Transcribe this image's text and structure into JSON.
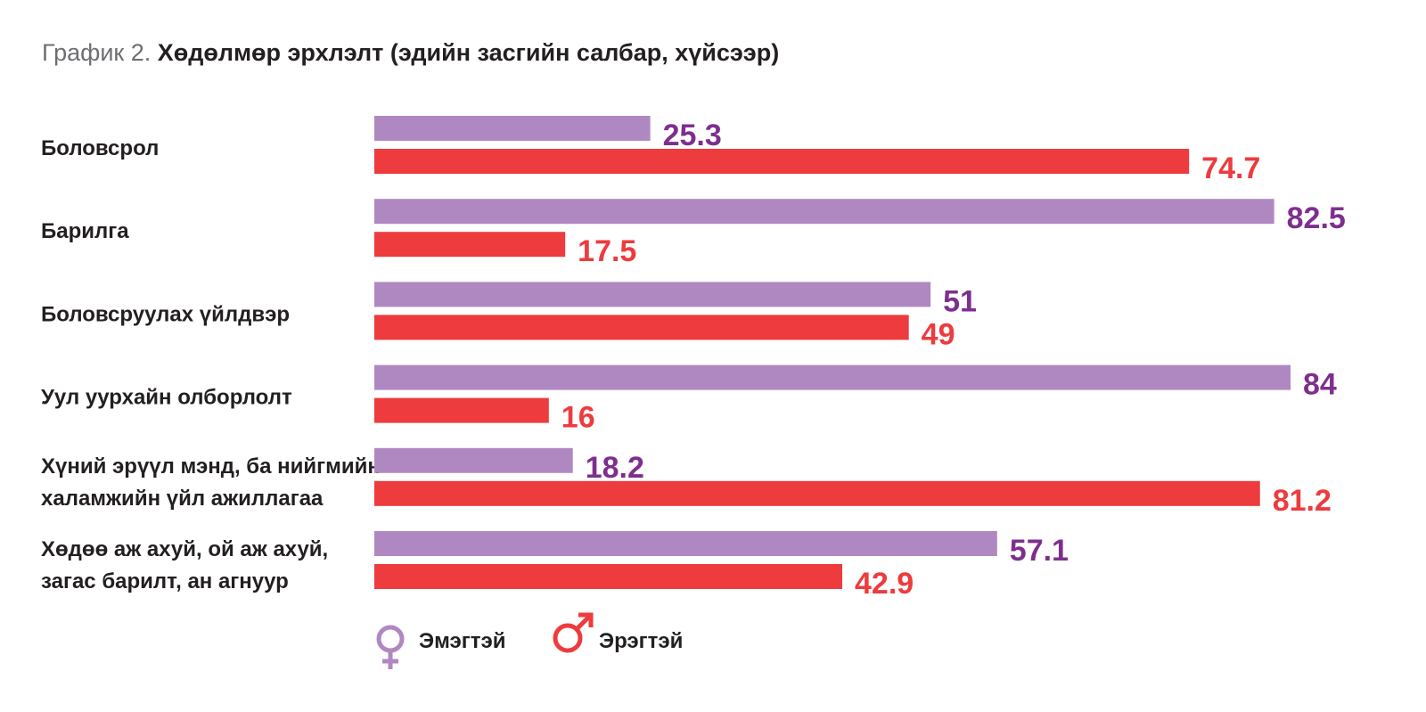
{
  "title": {
    "prefix": "График 2.",
    "text": "Хөдөлмөр эрхлэлт (эдийн засгийн салбар, хүйсээр)"
  },
  "colors": {
    "female": "#b088c1",
    "male": "#ed3b3e",
    "female_label": "#7e2f8e",
    "male_label": "#ed3b3e"
  },
  "legend": {
    "female_icon": "female-symbol-icon",
    "male_icon": "male-symbol-icon"
  },
  "chart_data": {
    "type": "bar",
    "orientation": "horizontal",
    "title": "Хөдөлмөр эрхлэлт (эдийн засгийн салбар, хүйсээр)",
    "categories": [
      [
        "Боловсрол"
      ],
      [
        "Барилга"
      ],
      [
        "Боловсруулах үйлдвэр"
      ],
      [
        "Уул уурхайн олборлолт"
      ],
      [
        "Хүний эрүүл мэнд, ба нийгмийн",
        "халамжийн үйл ажиллагаа"
      ],
      [
        "Хөдөө аж ахуй, ой аж ахуй,",
        "загас барилт, ан агнуур"
      ]
    ],
    "series": [
      {
        "name": "Эмэгтэй",
        "values": [
          25.3,
          82.5,
          51,
          84,
          18.2,
          57.1
        ]
      },
      {
        "name": "Эрэгтэй",
        "values": [
          74.7,
          17.5,
          49,
          16,
          81.2,
          42.9
        ]
      }
    ],
    "value_labels": {
      "female": [
        "25.3",
        "82.5",
        "51",
        "84",
        "18.2",
        "57.1"
      ],
      "male": [
        "74.7",
        "17.5",
        "49",
        "16",
        "81.2",
        "42.9"
      ]
    },
    "xlim": [
      0,
      84
    ],
    "grid": false,
    "legend_position": "bottom"
  }
}
